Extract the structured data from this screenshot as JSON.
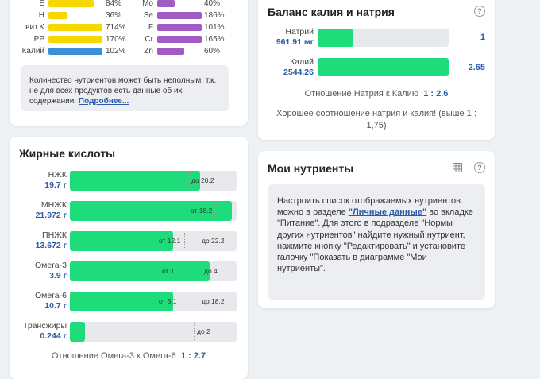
{
  "minerals": {
    "left": [
      {
        "name": "E",
        "pct": "84%",
        "color": "#f4d800",
        "fill": 0.84
      },
      {
        "name": "H",
        "pct": "36%",
        "color": "#f4d800",
        "fill": 0.36
      },
      {
        "name": "вит.K",
        "pct": "714%",
        "color": "#f4d800",
        "fill": 1
      },
      {
        "name": "PP",
        "pct": "170%",
        "color": "#f4d800",
        "fill": 1
      },
      {
        "name": "Калий",
        "pct": "102%",
        "color": "#3b8fd9",
        "fill": 1
      }
    ],
    "right": [
      {
        "name": "Mo",
        "pct": "40%",
        "color": "#a05cc4",
        "fill": 0.4
      },
      {
        "name": "Se",
        "pct": "186%",
        "color": "#a05cc4",
        "fill": 1
      },
      {
        "name": "F",
        "pct": "101%",
        "color": "#a05cc4",
        "fill": 1
      },
      {
        "name": "Cr",
        "pct": "165%",
        "color": "#a05cc4",
        "fill": 1
      },
      {
        "name": "Zn",
        "pct": "60%",
        "color": "#a05cc4",
        "fill": 0.6
      }
    ],
    "note_text": "Количество нутриентов может быть неполным, т.к. не для всех продуктов есть данные об их содержании.",
    "note_link": "Подробнее..."
  },
  "balance": {
    "title": "Баланс калия и натрия",
    "sodium": {
      "label": "Натрий",
      "value": "961.91 мг",
      "ratio": "1",
      "fill": 0.27
    },
    "potassium": {
      "label": "Калий",
      "value": "2544.26",
      "ratio": "2.65",
      "fill": 1
    },
    "ratio_label": "Отношение Натрия к Калию",
    "ratio_value": "1 : 2.6",
    "comment": "Хорошее соотношение натрия и калия! (выше 1 : 1,75)"
  },
  "fats": {
    "title": "Жирные кислоты",
    "rows": [
      {
        "name": "НЖК",
        "value": "19.7 г",
        "fill": 0.78,
        "from": "",
        "to": "до 20.2"
      },
      {
        "name": "МНЖК",
        "value": "21.972 г",
        "fill": 0.97,
        "from": "от 18.2",
        "to": ""
      },
      {
        "name": "ПНЖК",
        "value": "13.672 г",
        "fill": 0.62,
        "from": "от 12.1",
        "to": "до 22.2"
      },
      {
        "name": "Омега-3",
        "value": "3.9 г",
        "fill": 0.84,
        "from": "от 1",
        "to": "до 4"
      },
      {
        "name": "Омега-6",
        "value": "10.7 г",
        "fill": 0.62,
        "from": "от 5.1",
        "to": "до 18.2"
      },
      {
        "name": "Трансжиры",
        "value": "0.244 г",
        "fill": 0.09,
        "from": "",
        "to": "до 2"
      }
    ],
    "ratio_label": "Отношение Омега-3 к Омега-6",
    "ratio_value": "1 : 2.7"
  },
  "my_nutrients": {
    "title": "Мои нутриенты",
    "text_before": "Настроить список отображаемых нутриентов можно в разделе ",
    "link": "\"Личные данные\"",
    "text_after": " во вкладке \"Питание\". Для этого в подразделе \"Нормы других нутриентов\" найдите нужный нутриент, нажмите кнопку \"Редактировать\" и установите галочку \"Показать в диаграмме \"Мои нутриенты\"."
  }
}
